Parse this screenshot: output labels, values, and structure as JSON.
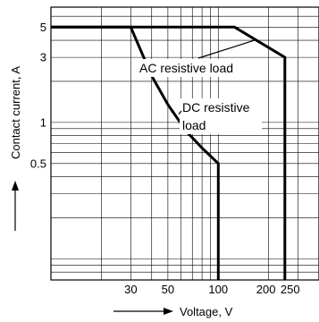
{
  "chart_data": {
    "type": "line",
    "xlabel": "Voltage, V",
    "ylabel": "Contact current, A",
    "x_scale": "log",
    "y_scale": "log",
    "xlim": [
      10,
      400
    ],
    "ylim": [
      0.07,
      7
    ],
    "grid": true,
    "x_ticks": [
      {
        "value": 30,
        "label": "30"
      },
      {
        "value": 50,
        "label": "50"
      },
      {
        "value": 100,
        "label": "100"
      },
      {
        "value": 200,
        "label": "200"
      },
      {
        "value": 250,
        "label": "250"
      }
    ],
    "y_ticks": [
      {
        "value": 5,
        "label": "5"
      },
      {
        "value": 3,
        "label": "3"
      },
      {
        "value": 1,
        "label": "1"
      },
      {
        "value": 0.5,
        "label": "0.5"
      }
    ],
    "series": [
      {
        "name": "AC resistive load",
        "points": [
          [
            10,
            5
          ],
          [
            125,
            5
          ],
          [
            250,
            3
          ],
          [
            250,
            0.07
          ]
        ]
      },
      {
        "name": "DC resistive load",
        "points": [
          [
            10,
            5
          ],
          [
            30,
            5
          ],
          [
            40,
            2.2
          ],
          [
            50,
            1.35
          ],
          [
            65,
            0.85
          ],
          [
            80,
            0.65
          ],
          [
            100,
            0.5
          ],
          [
            100,
            0.07
          ]
        ]
      }
    ],
    "annotations": [
      {
        "text": "AC resistive load",
        "target": [
          170,
          4.05
        ]
      },
      {
        "text": "DC resistive load",
        "target": [
          58,
          1.15
        ]
      }
    ]
  }
}
